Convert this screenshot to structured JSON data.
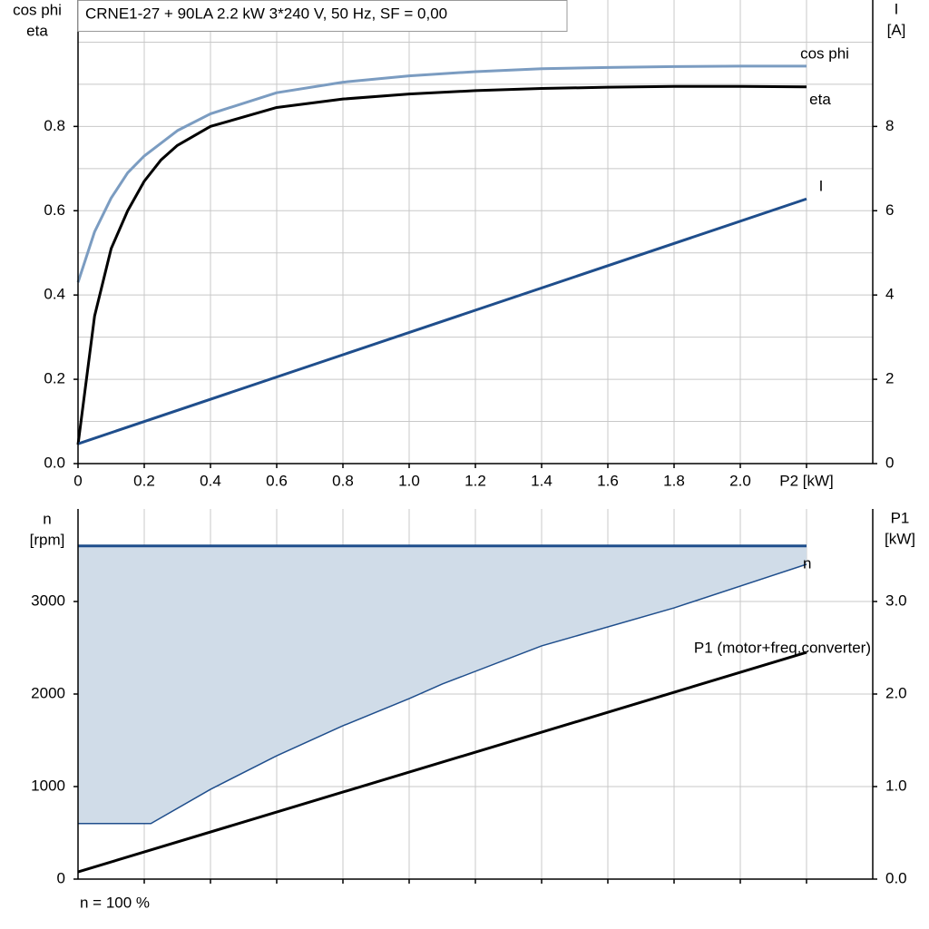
{
  "chart_data": [
    {
      "type": "line",
      "title": "CRNE1-27 + 90LA   2.2 kW   3*240 V, 50 Hz, SF = 0,00",
      "ylabel": [
        "cos phi",
        "eta"
      ],
      "y2label": [
        "I",
        "[A]"
      ],
      "xlim": [
        0,
        2.4
      ],
      "xticks": [
        0,
        0.2,
        0.4,
        0.6,
        0.8,
        {
          "value": 1,
          "label": "1.0"
        },
        1.2,
        1.4,
        1.6,
        1.8,
        {
          "value": 2,
          "label": "2.0"
        },
        {
          "value": 2.2,
          "label": "P2 [kW]"
        }
      ],
      "ylim": [
        0,
        1.1
      ],
      "yticks": [
        {
          "value": 0,
          "label": "0.0"
        },
        0.2,
        0.4,
        0.6,
        0.8
      ],
      "ygrid": [
        0.1,
        0.2,
        0.3,
        0.4,
        0.5,
        0.6,
        0.7,
        0.8,
        0.9,
        1.0
      ],
      "y2lim": [
        0,
        11
      ],
      "y2ticks": [
        0,
        2,
        4,
        6,
        8
      ],
      "grid": true,
      "series": [
        {
          "name": "cos phi",
          "color": "#7b9cc1",
          "x": [
            0,
            0.05,
            0.1,
            0.15,
            0.2,
            0.3,
            0.4,
            0.6,
            0.8,
            1.0,
            1.2,
            1.4,
            1.6,
            1.8,
            2.0,
            2.2
          ],
          "values": [
            0.43,
            0.55,
            0.63,
            0.69,
            0.73,
            0.79,
            0.83,
            0.88,
            0.905,
            0.92,
            0.93,
            0.937,
            0.94,
            0.942,
            0.943,
            0.943
          ]
        },
        {
          "name": "eta",
          "color": "#000000",
          "x": [
            0,
            0.05,
            0.1,
            0.15,
            0.2,
            0.25,
            0.3,
            0.4,
            0.6,
            0.8,
            1.0,
            1.2,
            1.4,
            1.6,
            1.8,
            2.0,
            2.2
          ],
          "values": [
            0.045,
            0.35,
            0.51,
            0.6,
            0.67,
            0.72,
            0.755,
            0.8,
            0.845,
            0.865,
            0.877,
            0.885,
            0.89,
            0.893,
            0.895,
            0.895,
            0.894
          ]
        },
        {
          "name": "I",
          "color": "#1f4e8c",
          "axis": "y2",
          "x": [
            0,
            2.2
          ],
          "values": [
            0.47,
            6.28
          ]
        }
      ]
    },
    {
      "type": "line",
      "ylabel": [
        "n",
        "[rpm]"
      ],
      "y2label": [
        "P1",
        "[kW]"
      ],
      "xlim": [
        0,
        2.4
      ],
      "xgrid": [
        0.2,
        0.4,
        0.6,
        0.8,
        1.0,
        1.2,
        1.4,
        1.6,
        1.8,
        2.0,
        2.2
      ],
      "ylim": [
        0,
        4000
      ],
      "yticks": [
        0,
        1000,
        2000,
        3000
      ],
      "y2lim": [
        0,
        4
      ],
      "y2ticks": [
        {
          "value": 0,
          "label": "0.0"
        },
        {
          "value": 1,
          "label": "1.0"
        },
        {
          "value": 2,
          "label": "2.0"
        },
        {
          "value": 3,
          "label": "3.0"
        }
      ],
      "grid": true,
      "note": "n = 100 %",
      "series": [
        {
          "name": "n",
          "type": "band",
          "color": "#1f4e8c",
          "fill": "#d0dce8",
          "x": [
            0,
            0.22,
            0.4,
            0.6,
            0.8,
            1.0,
            1.1,
            1.4,
            1.8,
            2.2
          ],
          "low": [
            600,
            600,
            970,
            1333,
            1657,
            1950,
            2108,
            2520,
            2931,
            3402
          ],
          "high": [
            3600,
            3600,
            3600,
            3600,
            3600,
            3600,
            3600,
            3600,
            3600,
            3600
          ]
        },
        {
          "name": "P1 (motor+freq.converter)",
          "color": "#000000",
          "axis": "y2",
          "x": [
            0,
            2.2
          ],
          "values": [
            0.078,
            2.45
          ]
        }
      ]
    }
  ]
}
